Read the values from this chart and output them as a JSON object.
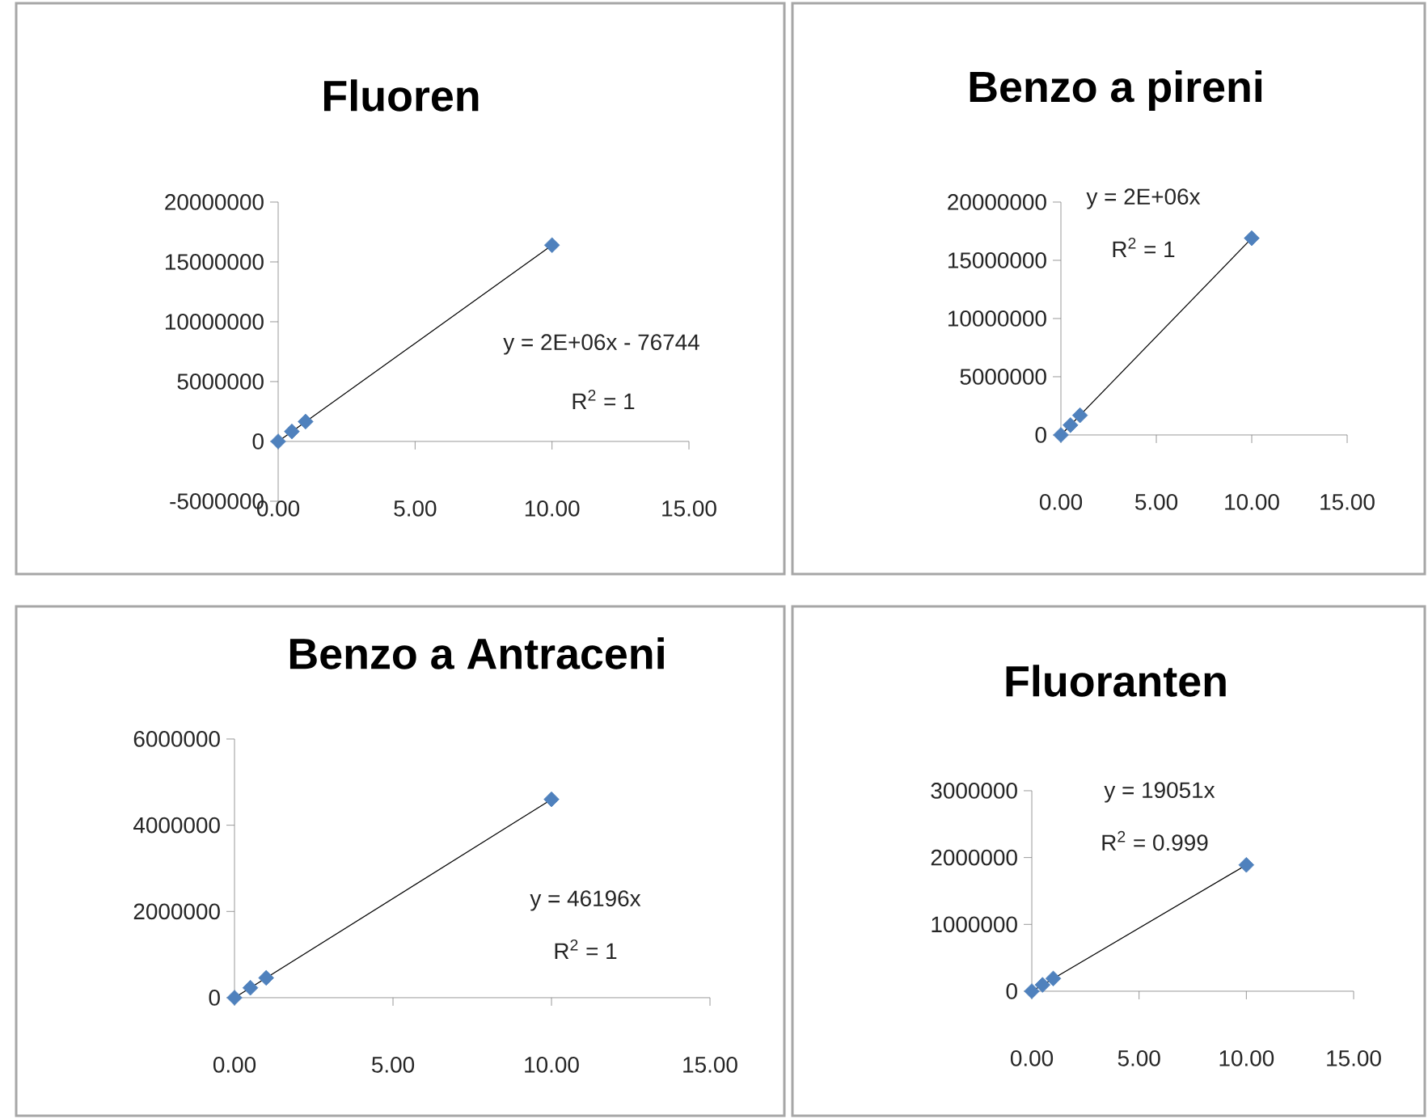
{
  "chart_data": [
    {
      "type": "scatter",
      "title": "Fluoren",
      "xlim": [
        0,
        15
      ],
      "xticks": [
        {
          "value": 0,
          "label": "0.00"
        },
        {
          "value": 5,
          "label": "5.00"
        },
        {
          "value": 10,
          "label": "10.00"
        },
        {
          "value": 15,
          "label": "15.00"
        }
      ],
      "ylim": [
        -5000000,
        20000000
      ],
      "yticks": [
        -5000000,
        0,
        5000000,
        10000000,
        15000000,
        20000000
      ],
      "series": [
        {
          "type": "scatter",
          "marker": "diamond",
          "color": "#4f81bd",
          "x": [
            0,
            0.5,
            1,
            10
          ],
          "values": [
            0,
            830000,
            1660000,
            16400000
          ]
        },
        {
          "type": "line",
          "color": "#000000",
          "x": [
            0,
            10
          ],
          "values": [
            0,
            16400000
          ]
        }
      ],
      "annotations": [
        "y = 2E+06x - 76744",
        "R$^{2}$ = 1"
      ]
    },
    {
      "type": "scatter",
      "title": "Benzo a pireni",
      "xlim": [
        0,
        15
      ],
      "xticks": [
        {
          "value": 0,
          "label": "0.00"
        },
        {
          "value": 5,
          "label": "5.00"
        },
        {
          "value": 10,
          "label": "10.00"
        },
        {
          "value": 15,
          "label": "15.00"
        }
      ],
      "ylim": [
        0,
        20000000
      ],
      "yticks": [
        0,
        5000000,
        10000000,
        15000000,
        20000000
      ],
      "series": [
        {
          "type": "scatter",
          "marker": "diamond",
          "color": "#4f81bd",
          "x": [
            0,
            0.5,
            1,
            10
          ],
          "values": [
            0,
            845000,
            1690000,
            16900000
          ]
        },
        {
          "type": "line",
          "color": "#000000",
          "x": [
            0,
            10
          ],
          "values": [
            0,
            16900000
          ]
        }
      ],
      "annotations": [
        "y = 2E+06x",
        "R$^{2}$ = 1"
      ]
    },
    {
      "type": "scatter",
      "title": "Benzo a Antraceni",
      "xlim": [
        0,
        15
      ],
      "xticks": [
        {
          "value": 0,
          "label": "0.00"
        },
        {
          "value": 5,
          "label": "5.00"
        },
        {
          "value": 10,
          "label": "10.00"
        },
        {
          "value": 15,
          "label": "15.00"
        }
      ],
      "ylim": [
        0,
        6000000
      ],
      "yticks": [
        0,
        2000000,
        4000000,
        6000000
      ],
      "series": [
        {
          "type": "scatter",
          "marker": "diamond",
          "color": "#4f81bd",
          "x": [
            0,
            0.5,
            1,
            10
          ],
          "values": [
            0,
            230000,
            460000,
            4600000
          ]
        },
        {
          "type": "line",
          "color": "#000000",
          "x": [
            0,
            10
          ],
          "values": [
            0,
            4600000
          ]
        }
      ],
      "annotations": [
        "y = 46196x",
        "R$^{2}$ = 1"
      ]
    },
    {
      "type": "scatter",
      "title": "Fluoranten",
      "xlim": [
        0,
        15
      ],
      "xticks": [
        {
          "value": 0,
          "label": "0.00"
        },
        {
          "value": 5,
          "label": "5.00"
        },
        {
          "value": 10,
          "label": "10.00"
        },
        {
          "value": 15,
          "label": "15.00"
        }
      ],
      "ylim": [
        0,
        3000000
      ],
      "yticks": [
        0,
        1000000,
        2000000,
        3000000
      ],
      "series": [
        {
          "type": "scatter",
          "marker": "diamond",
          "color": "#4f81bd",
          "x": [
            0,
            0.5,
            1,
            10
          ],
          "values": [
            0,
            95000,
            190000,
            1890000
          ]
        },
        {
          "type": "line",
          "color": "#000000",
          "x": [
            0,
            10
          ],
          "values": [
            0,
            1890000
          ]
        }
      ],
      "annotations": [
        "y = 19051x",
        "R$^{2}$ = 0.999"
      ]
    }
  ]
}
